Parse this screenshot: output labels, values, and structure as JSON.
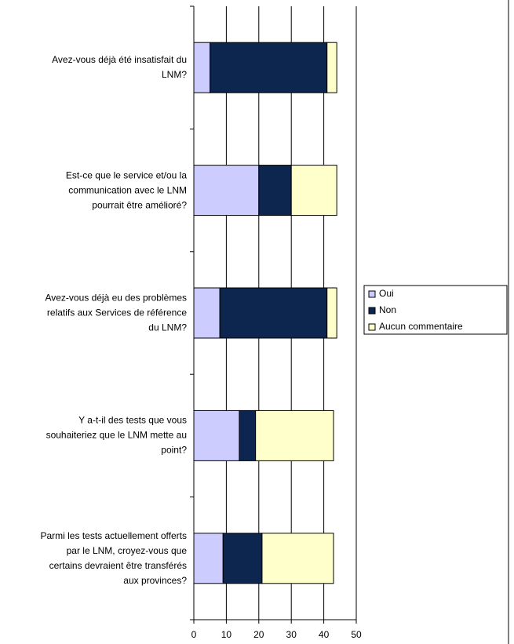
{
  "chart_data": {
    "type": "bar",
    "orientation": "horizontal",
    "stacked": true,
    "categories": [
      "Avez-vous déjà été insatisfait du LNM?",
      "Est-ce que le service et/ou la communication avec le LNM pourrait être amélioré?",
      "Avez-vous déjà eu des problèmes relatifs aux Services de référence du LNM?",
      "Y a-t-il des tests que vous souhaiteriez que le LNM mette au point?",
      "Parmi les tests actuellement offerts par le LNM, croyez-vous que certains devraient être transférés aux provinces?"
    ],
    "series": [
      {
        "name": "Oui",
        "color": "#ccccff",
        "values": [
          5,
          20,
          8,
          14,
          9
        ]
      },
      {
        "name": "Non",
        "color": "#0d2650",
        "values": [
          36,
          10,
          33,
          5,
          12
        ]
      },
      {
        "name": "Aucun commentaire",
        "color": "#ffffcc",
        "values": [
          3,
          14,
          3,
          24,
          22
        ]
      }
    ],
    "xlim": [
      0,
      50
    ],
    "xticks": [
      0,
      10,
      20,
      30,
      40,
      50
    ],
    "grid": true,
    "legend": "right"
  }
}
